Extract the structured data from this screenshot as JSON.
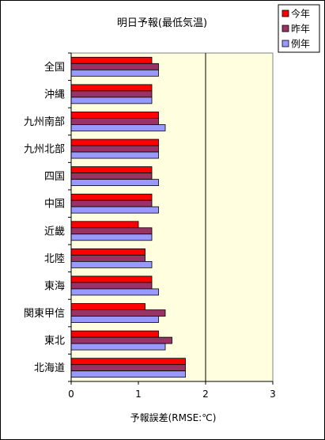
{
  "chart_data": {
    "type": "bar",
    "orientation": "horizontal",
    "title": "明日予報(最低気温)",
    "xlabel": "予報誤差(RMSE:℃)",
    "ylabel": "",
    "xlim": [
      0,
      3
    ],
    "xticks": [
      "0",
      "1",
      "2",
      "3"
    ],
    "grid": "vertical lines at 2 and 3",
    "plot_background": "#ffffe0",
    "legend_position": "top-right",
    "categories": [
      "全国",
      "沖縄",
      "九州南部",
      "九州北部",
      "四国",
      "中国",
      "近畿",
      "北陸",
      "東海",
      "関東甲信",
      "東北",
      "北海道"
    ],
    "series": [
      {
        "name": "今年",
        "color": "#ff0000",
        "values": [
          1.2,
          1.2,
          1.3,
          1.3,
          1.2,
          1.2,
          1.0,
          1.1,
          1.2,
          1.1,
          1.3,
          1.7
        ]
      },
      {
        "name": "昨年",
        "color": "#993366",
        "values": [
          1.3,
          1.2,
          1.3,
          1.3,
          1.2,
          1.2,
          1.2,
          1.1,
          1.2,
          1.4,
          1.5,
          1.7
        ]
      },
      {
        "name": "例年",
        "color": "#9999ff",
        "values": [
          1.3,
          1.2,
          1.4,
          1.3,
          1.3,
          1.3,
          1.2,
          1.2,
          1.3,
          1.3,
          1.4,
          1.7
        ]
      }
    ]
  }
}
